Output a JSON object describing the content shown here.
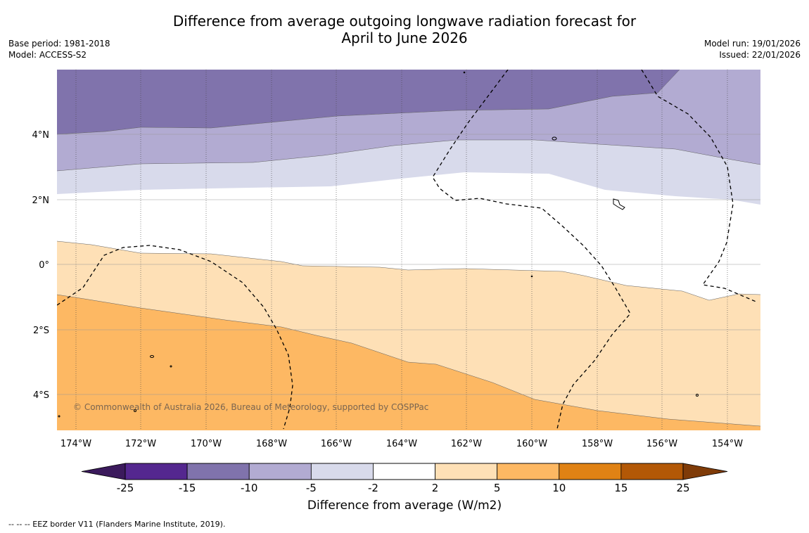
{
  "title_line1": "Difference from average outgoing longwave radiation forecast for",
  "title_line2": "April to June 2026",
  "info_left": {
    "base_period": "Base period: 1981-2018",
    "model": "Model: ACCESS-S2"
  },
  "info_right": {
    "model_run": "Model run: 19/01/2026",
    "issued": "Issued: 22/01/2026"
  },
  "map": {
    "lat_labels": [
      "4°N",
      "2°N",
      "0°",
      "2°S",
      "4°S"
    ],
    "lon_labels": [
      "174°W",
      "172°W",
      "170°W",
      "168°W",
      "166°W",
      "164°W",
      "162°W",
      "160°W",
      "158°W",
      "156°W",
      "154°W"
    ],
    "copyright": "© Commonwealth of Australia 2026, Bureau of Meteorology, supported by COSPPac"
  },
  "colorbar": {
    "title": "Difference from average (W/m2)",
    "ticks": [
      "-25",
      "-15",
      "-10",
      "-5",
      "-2",
      "2",
      "5",
      "10",
      "15",
      "25"
    ],
    "colors": [
      "#3b1a5c",
      "#54278f",
      "#8073ac",
      "#b2abd2",
      "#d8daeb",
      "#ffffff",
      "#fee0b6",
      "#fdb863",
      "#e08214",
      "#b35806",
      "#7f3b08"
    ]
  },
  "legend_note": "--  --  -- EEZ border V11 (Flanders Marine Institute, 2019)."
}
